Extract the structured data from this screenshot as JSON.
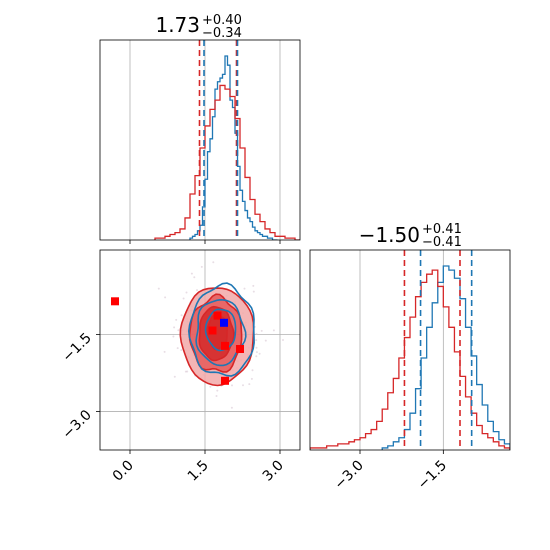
{
  "colors": {
    "blue": "#1f77b4",
    "red": "#d62728",
    "grid": "#b0b0b0",
    "red_fill_light": "#f2a8a8",
    "red_fill_mid": "#e55a5a",
    "red_fill_dark": "#d32a2a",
    "truth_marker": "#ff0000",
    "best_marker": "#0000ff"
  },
  "chart_data": [
    {
      "type": "histogram",
      "panel": "marginal-x",
      "title": {
        "value": "1.73",
        "upper": "+0.40",
        "lower": "−0.34"
      },
      "xlim": [
        -0.6,
        3.4
      ],
      "x_ticks": [
        0.0,
        1.5,
        3.0
      ],
      "grid": true,
      "series": [
        {
          "color": "#1f77b4",
          "bins": [
            1.2,
            1.25,
            1.3,
            1.35,
            1.4,
            1.45,
            1.5,
            1.55,
            1.6,
            1.65,
            1.7,
            1.75,
            1.8,
            1.85,
            1.9,
            1.95,
            2.0,
            2.05,
            2.1,
            2.15,
            2.2,
            2.25,
            2.3,
            2.35,
            2.4,
            2.45,
            2.5,
            2.55,
            2.6,
            2.65,
            2.7,
            2.75,
            2.8,
            2.85,
            2.9
          ],
          "counts": [
            1,
            2,
            3,
            5,
            8,
            18,
            33,
            48,
            55,
            67,
            82,
            86,
            88,
            90,
            100,
            95,
            76,
            72,
            58,
            40,
            27,
            21,
            16,
            12,
            10,
            7,
            5,
            4,
            3,
            2,
            2,
            1,
            1,
            0,
            0
          ]
        },
        {
          "color": "#d62728",
          "bins": [
            0.5,
            0.6,
            0.7,
            0.8,
            0.9,
            1.0,
            1.1,
            1.2,
            1.3,
            1.4,
            1.5,
            1.6,
            1.7,
            1.8,
            1.9,
            2.0,
            2.1,
            2.2,
            2.3,
            2.4,
            2.5,
            2.6,
            2.7,
            2.8,
            2.9,
            3.0,
            3.1,
            3.2,
            3.3
          ],
          "counts": [
            1,
            1,
            2,
            3,
            4,
            6,
            12,
            25,
            35,
            50,
            62,
            71,
            76,
            84,
            82,
            78,
            66,
            50,
            34,
            22,
            14,
            10,
            6,
            4,
            2,
            2,
            1,
            1,
            0
          ]
        }
      ],
      "quantiles": [
        {
          "color": "#d62728",
          "values": [
            1.39,
            2.13
          ]
        },
        {
          "color": "#1f77b4",
          "values": [
            1.48,
            2.15
          ]
        }
      ]
    },
    {
      "type": "histogram",
      "panel": "marginal-y",
      "title": {
        "value": "−1.50",
        "upper": "+0.41",
        "lower": "−0.41"
      },
      "xlim": [
        -3.9,
        -0.3
      ],
      "x_ticks": [
        -3.0,
        -1.5
      ],
      "grid": true,
      "series": [
        {
          "color": "#1f77b4",
          "bins": [
            -2.6,
            -2.5,
            -2.4,
            -2.3,
            -2.2,
            -2.1,
            -2.0,
            -1.9,
            -1.8,
            -1.7,
            -1.6,
            -1.5,
            -1.4,
            -1.3,
            -1.2,
            -1.1,
            -1.0,
            -0.9,
            -0.8,
            -0.7,
            -0.6,
            -0.5,
            -0.4
          ],
          "counts": [
            1,
            2,
            4,
            6,
            10,
            18,
            30,
            45,
            60,
            72,
            82,
            90,
            88,
            84,
            74,
            60,
            46,
            32,
            22,
            14,
            9,
            5,
            3
          ]
        },
        {
          "color": "#d62728",
          "bins": [
            -3.9,
            -3.8,
            -3.7,
            -3.6,
            -3.5,
            -3.4,
            -3.3,
            -3.2,
            -3.1,
            -3.0,
            -2.9,
            -2.8,
            -2.7,
            -2.6,
            -2.5,
            -2.4,
            -2.3,
            -2.2,
            -2.1,
            -2.0,
            -1.9,
            -1.8,
            -1.7,
            -1.6,
            -1.5,
            -1.4,
            -1.3,
            -1.2,
            -1.1,
            -1.0,
            -0.9,
            -0.8,
            -0.7,
            -0.6,
            -0.5,
            -0.4
          ],
          "counts": [
            1,
            1,
            1,
            2,
            2,
            3,
            3,
            4,
            5,
            6,
            8,
            10,
            14,
            20,
            28,
            35,
            45,
            55,
            65,
            75,
            82,
            86,
            88,
            80,
            70,
            60,
            48,
            36,
            26,
            18,
            12,
            8,
            6,
            4,
            2,
            1
          ]
        }
      ],
      "quantiles": [
        {
          "color": "#d62728",
          "values": [
            -2.2,
            -1.2
          ]
        },
        {
          "color": "#1f77b4",
          "values": [
            -1.91,
            -0.99
          ]
        }
      ]
    },
    {
      "type": "contour",
      "panel": "joint",
      "xlim": [
        -0.6,
        3.4
      ],
      "ylim": [
        -3.75,
        0.15
      ],
      "x_ticks": [
        0.0,
        1.5,
        3.0
      ],
      "y_ticks": [
        -1.5,
        -3.0
      ],
      "grid": true,
      "contours": [
        {
          "color": "#d62728",
          "fill": "#f2a8a8",
          "center": [
            1.75,
            -1.52
          ],
          "rx": 0.73,
          "ry": 0.95
        },
        {
          "color": "#d62728",
          "fill": "#e55a5a",
          "center": [
            1.72,
            -1.5
          ],
          "rx": 0.52,
          "ry": 0.73
        },
        {
          "color": "#d62728",
          "fill": "#d32a2a",
          "center": [
            1.72,
            -1.48
          ],
          "rx": 0.34,
          "ry": 0.52
        },
        {
          "color": "#d62728",
          "fill": "#d32a2a",
          "center": [
            1.75,
            -1.45
          ],
          "rx": 0.2,
          "ry": 0.33
        },
        {
          "color": "#1f77b4",
          "fill": "none",
          "center": [
            1.85,
            -1.43
          ],
          "rx": 0.65,
          "ry": 0.88
        },
        {
          "color": "#1f77b4",
          "fill": "none",
          "center": [
            1.8,
            -1.45
          ],
          "rx": 0.48,
          "ry": 0.64
        },
        {
          "color": "#1f77b4",
          "fill": "none",
          "center": [
            1.82,
            -1.4
          ],
          "rx": 0.3,
          "ry": 0.4
        }
      ],
      "markers": [
        {
          "color": "#ff0000",
          "x": -0.3,
          "y": -0.85
        },
        {
          "color": "#ff0000",
          "x": 1.75,
          "y": -1.13
        },
        {
          "color": "#ff0000",
          "x": 1.65,
          "y": -1.42
        },
        {
          "color": "#ff0000",
          "x": 1.9,
          "y": -1.72
        },
        {
          "color": "#ff0000",
          "x": 2.2,
          "y": -1.78
        },
        {
          "color": "#ff0000",
          "x": 1.9,
          "y": -2.4
        },
        {
          "color": "#0000ff",
          "x": 1.88,
          "y": -1.27
        }
      ]
    }
  ]
}
